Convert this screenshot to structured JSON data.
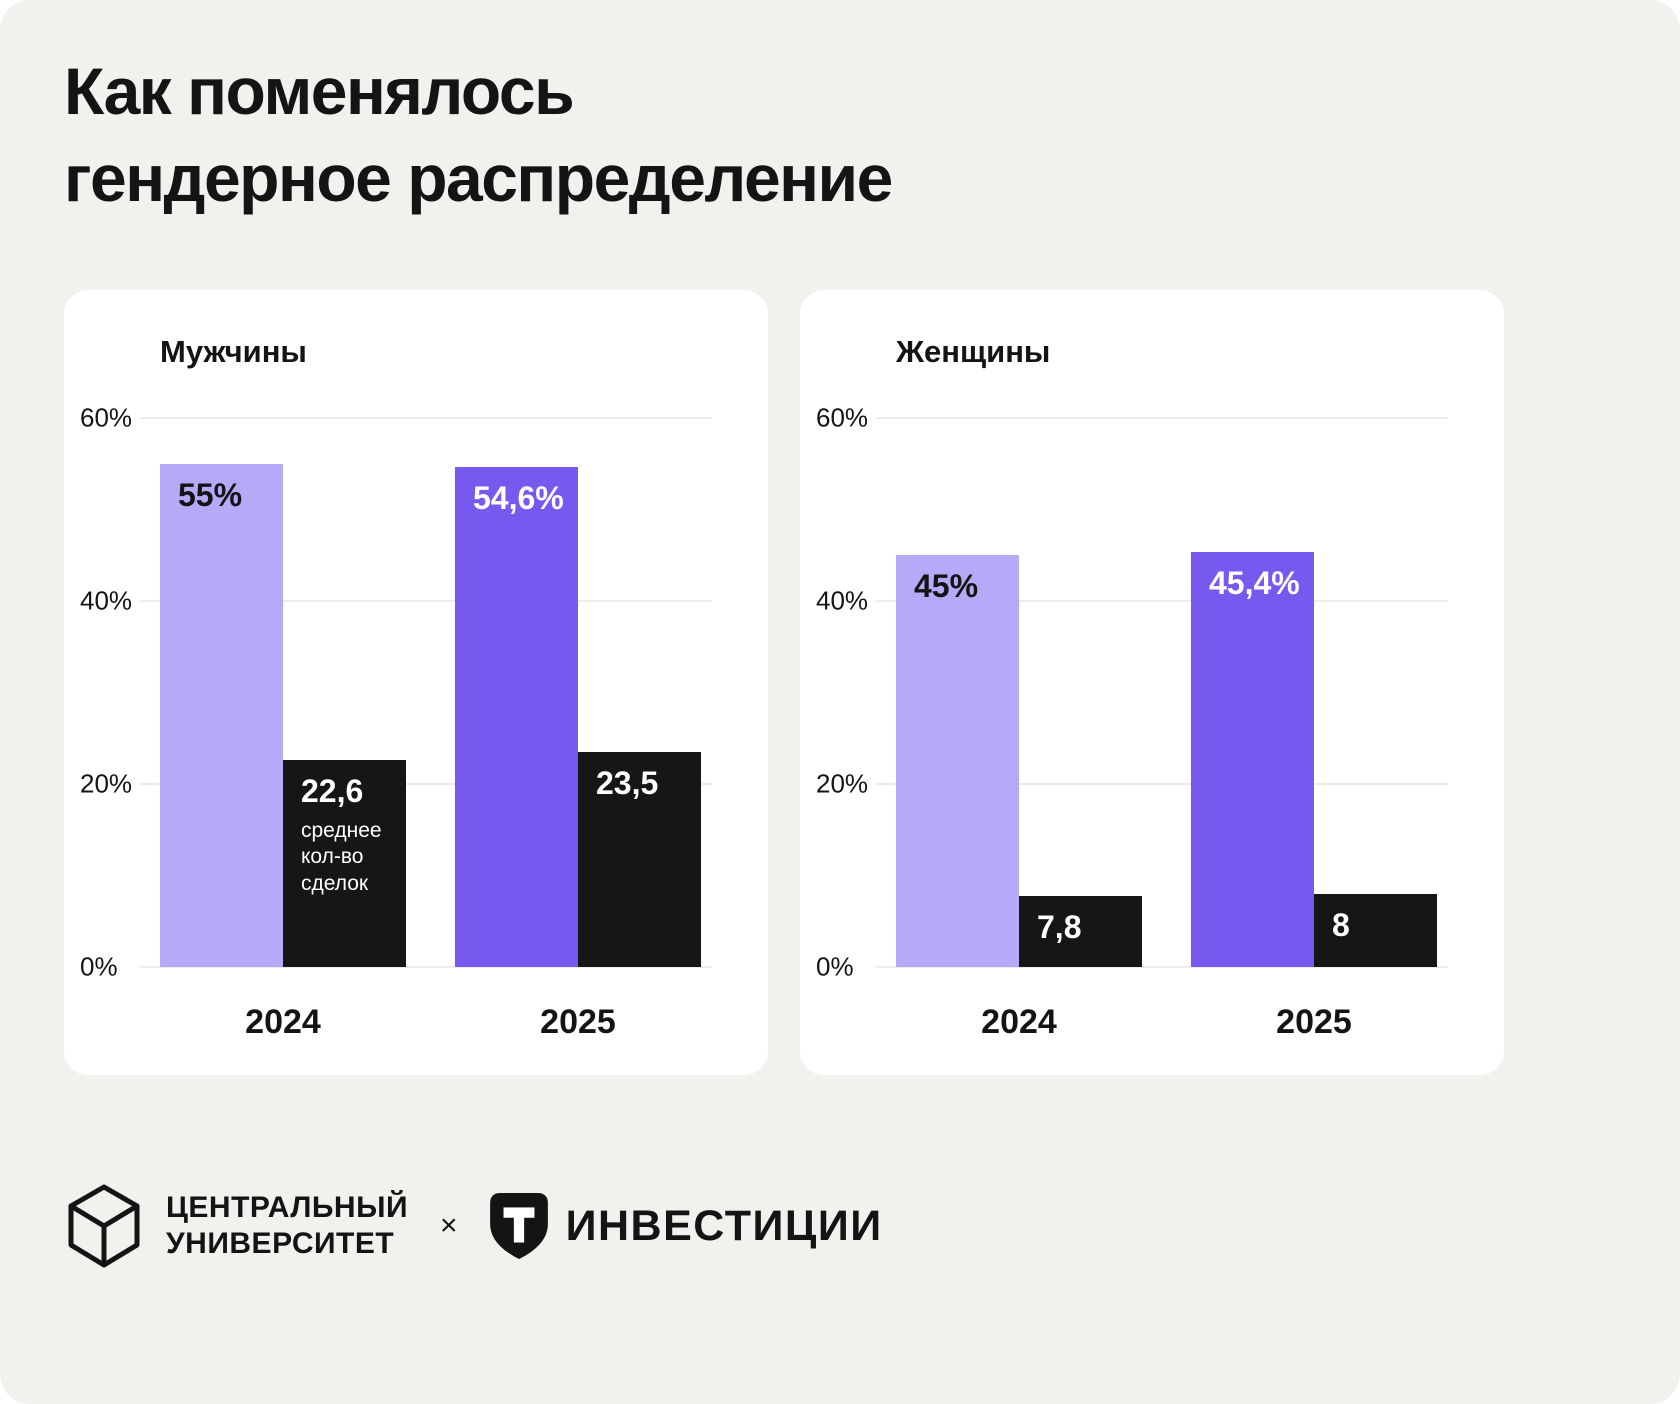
{
  "title": {
    "line1": "Как поменялось",
    "line2": "гендерное распределение"
  },
  "colors": {
    "background": "#f3f1ee",
    "card": "#ffffff",
    "bar_2024": "#b7a9f7",
    "bar_2025": "#7759f0",
    "bar_deals": "#161616",
    "text": "#141414",
    "gridline": "#dbd9d6"
  },
  "chart_data": [
    {
      "type": "bar",
      "title": "Мужчины",
      "categories": [
        "2024",
        "2025"
      ],
      "series": [
        {
          "name": "share-percent",
          "values": [
            55,
            54.6
          ],
          "value_labels": [
            "55%",
            "54,6%"
          ],
          "bar_colors": [
            "#b7a9f7",
            "#7759f0"
          ],
          "label_colors": [
            "#141414",
            "#ffffff"
          ]
        },
        {
          "name": "avg-deals",
          "values": [
            22.6,
            23.5
          ],
          "value_labels": [
            "22,6",
            "23,5"
          ],
          "bar_colors": [
            "#161616",
            "#161616"
          ],
          "label_colors": [
            "#ffffff",
            "#ffffff"
          ],
          "note": {
            "category_index": 0,
            "text": "среднее кол-во сделок"
          }
        }
      ],
      "ylim": [
        0,
        60
      ],
      "yticks": [
        {
          "value": 60,
          "label": "60%"
        },
        {
          "value": 40,
          "label": "40%"
        },
        {
          "value": 20,
          "label": "20%"
        },
        {
          "value": 0,
          "label": "0%"
        }
      ],
      "grid": true,
      "legend_position": "none"
    },
    {
      "type": "bar",
      "title": "Женщины",
      "categories": [
        "2024",
        "2025"
      ],
      "series": [
        {
          "name": "share-percent",
          "values": [
            45,
            45.4
          ],
          "value_labels": [
            "45%",
            "45,4%"
          ],
          "bar_colors": [
            "#b7a9f7",
            "#7759f0"
          ],
          "label_colors": [
            "#141414",
            "#ffffff"
          ]
        },
        {
          "name": "avg-deals",
          "values": [
            7.8,
            8
          ],
          "value_labels": [
            "7,8",
            "8"
          ],
          "bar_colors": [
            "#161616",
            "#161616"
          ],
          "label_colors": [
            "#ffffff",
            "#ffffff"
          ]
        }
      ],
      "ylim": [
        0,
        60
      ],
      "yticks": [
        {
          "value": 60,
          "label": "60%"
        },
        {
          "value": 40,
          "label": "40%"
        },
        {
          "value": 20,
          "label": "20%"
        },
        {
          "value": 0,
          "label": "0%"
        }
      ],
      "grid": true,
      "legend_position": "none"
    }
  ],
  "footer": {
    "university": {
      "logo": "university-cube-logo-icon",
      "line1": "ЦЕНТРАЛЬНЫЙ",
      "line2": "УНИВЕРСИТЕТ"
    },
    "separator": "×",
    "partner": {
      "logo": "t-shield-icon",
      "name": "ИНВЕСТИЦИИ"
    }
  }
}
